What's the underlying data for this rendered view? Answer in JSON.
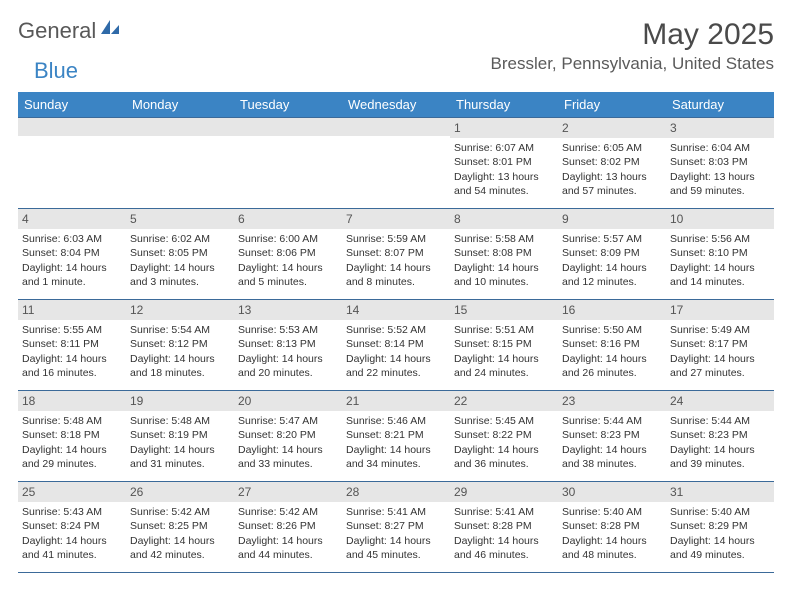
{
  "logo": {
    "general": "General",
    "blue": "Blue"
  },
  "title": "May 2025",
  "location": "Bressler, Pennsylvania, United States",
  "colors": {
    "header_bg": "#3b84c4",
    "header_text": "#ffffff",
    "row_border": "#3b6a99",
    "daynum_bg": "#e6e6e6",
    "body_text": "#333333",
    "title_text": "#4a4a4a",
    "location_text": "#5a5a5a"
  },
  "day_names": [
    "Sunday",
    "Monday",
    "Tuesday",
    "Wednesday",
    "Thursday",
    "Friday",
    "Saturday"
  ],
  "weeks": [
    [
      {
        "n": "",
        "sr": "",
        "ss": "",
        "dl": ""
      },
      {
        "n": "",
        "sr": "",
        "ss": "",
        "dl": ""
      },
      {
        "n": "",
        "sr": "",
        "ss": "",
        "dl": ""
      },
      {
        "n": "",
        "sr": "",
        "ss": "",
        "dl": ""
      },
      {
        "n": "1",
        "sr": "Sunrise: 6:07 AM",
        "ss": "Sunset: 8:01 PM",
        "dl": "Daylight: 13 hours and 54 minutes."
      },
      {
        "n": "2",
        "sr": "Sunrise: 6:05 AM",
        "ss": "Sunset: 8:02 PM",
        "dl": "Daylight: 13 hours and 57 minutes."
      },
      {
        "n": "3",
        "sr": "Sunrise: 6:04 AM",
        "ss": "Sunset: 8:03 PM",
        "dl": "Daylight: 13 hours and 59 minutes."
      }
    ],
    [
      {
        "n": "4",
        "sr": "Sunrise: 6:03 AM",
        "ss": "Sunset: 8:04 PM",
        "dl": "Daylight: 14 hours and 1 minute."
      },
      {
        "n": "5",
        "sr": "Sunrise: 6:02 AM",
        "ss": "Sunset: 8:05 PM",
        "dl": "Daylight: 14 hours and 3 minutes."
      },
      {
        "n": "6",
        "sr": "Sunrise: 6:00 AM",
        "ss": "Sunset: 8:06 PM",
        "dl": "Daylight: 14 hours and 5 minutes."
      },
      {
        "n": "7",
        "sr": "Sunrise: 5:59 AM",
        "ss": "Sunset: 8:07 PM",
        "dl": "Daylight: 14 hours and 8 minutes."
      },
      {
        "n": "8",
        "sr": "Sunrise: 5:58 AM",
        "ss": "Sunset: 8:08 PM",
        "dl": "Daylight: 14 hours and 10 minutes."
      },
      {
        "n": "9",
        "sr": "Sunrise: 5:57 AM",
        "ss": "Sunset: 8:09 PM",
        "dl": "Daylight: 14 hours and 12 minutes."
      },
      {
        "n": "10",
        "sr": "Sunrise: 5:56 AM",
        "ss": "Sunset: 8:10 PM",
        "dl": "Daylight: 14 hours and 14 minutes."
      }
    ],
    [
      {
        "n": "11",
        "sr": "Sunrise: 5:55 AM",
        "ss": "Sunset: 8:11 PM",
        "dl": "Daylight: 14 hours and 16 minutes."
      },
      {
        "n": "12",
        "sr": "Sunrise: 5:54 AM",
        "ss": "Sunset: 8:12 PM",
        "dl": "Daylight: 14 hours and 18 minutes."
      },
      {
        "n": "13",
        "sr": "Sunrise: 5:53 AM",
        "ss": "Sunset: 8:13 PM",
        "dl": "Daylight: 14 hours and 20 minutes."
      },
      {
        "n": "14",
        "sr": "Sunrise: 5:52 AM",
        "ss": "Sunset: 8:14 PM",
        "dl": "Daylight: 14 hours and 22 minutes."
      },
      {
        "n": "15",
        "sr": "Sunrise: 5:51 AM",
        "ss": "Sunset: 8:15 PM",
        "dl": "Daylight: 14 hours and 24 minutes."
      },
      {
        "n": "16",
        "sr": "Sunrise: 5:50 AM",
        "ss": "Sunset: 8:16 PM",
        "dl": "Daylight: 14 hours and 26 minutes."
      },
      {
        "n": "17",
        "sr": "Sunrise: 5:49 AM",
        "ss": "Sunset: 8:17 PM",
        "dl": "Daylight: 14 hours and 27 minutes."
      }
    ],
    [
      {
        "n": "18",
        "sr": "Sunrise: 5:48 AM",
        "ss": "Sunset: 8:18 PM",
        "dl": "Daylight: 14 hours and 29 minutes."
      },
      {
        "n": "19",
        "sr": "Sunrise: 5:48 AM",
        "ss": "Sunset: 8:19 PM",
        "dl": "Daylight: 14 hours and 31 minutes."
      },
      {
        "n": "20",
        "sr": "Sunrise: 5:47 AM",
        "ss": "Sunset: 8:20 PM",
        "dl": "Daylight: 14 hours and 33 minutes."
      },
      {
        "n": "21",
        "sr": "Sunrise: 5:46 AM",
        "ss": "Sunset: 8:21 PM",
        "dl": "Daylight: 14 hours and 34 minutes."
      },
      {
        "n": "22",
        "sr": "Sunrise: 5:45 AM",
        "ss": "Sunset: 8:22 PM",
        "dl": "Daylight: 14 hours and 36 minutes."
      },
      {
        "n": "23",
        "sr": "Sunrise: 5:44 AM",
        "ss": "Sunset: 8:23 PM",
        "dl": "Daylight: 14 hours and 38 minutes."
      },
      {
        "n": "24",
        "sr": "Sunrise: 5:44 AM",
        "ss": "Sunset: 8:23 PM",
        "dl": "Daylight: 14 hours and 39 minutes."
      }
    ],
    [
      {
        "n": "25",
        "sr": "Sunrise: 5:43 AM",
        "ss": "Sunset: 8:24 PM",
        "dl": "Daylight: 14 hours and 41 minutes."
      },
      {
        "n": "26",
        "sr": "Sunrise: 5:42 AM",
        "ss": "Sunset: 8:25 PM",
        "dl": "Daylight: 14 hours and 42 minutes."
      },
      {
        "n": "27",
        "sr": "Sunrise: 5:42 AM",
        "ss": "Sunset: 8:26 PM",
        "dl": "Daylight: 14 hours and 44 minutes."
      },
      {
        "n": "28",
        "sr": "Sunrise: 5:41 AM",
        "ss": "Sunset: 8:27 PM",
        "dl": "Daylight: 14 hours and 45 minutes."
      },
      {
        "n": "29",
        "sr": "Sunrise: 5:41 AM",
        "ss": "Sunset: 8:28 PM",
        "dl": "Daylight: 14 hours and 46 minutes."
      },
      {
        "n": "30",
        "sr": "Sunrise: 5:40 AM",
        "ss": "Sunset: 8:28 PM",
        "dl": "Daylight: 14 hours and 48 minutes."
      },
      {
        "n": "31",
        "sr": "Sunrise: 5:40 AM",
        "ss": "Sunset: 8:29 PM",
        "dl": "Daylight: 14 hours and 49 minutes."
      }
    ]
  ]
}
